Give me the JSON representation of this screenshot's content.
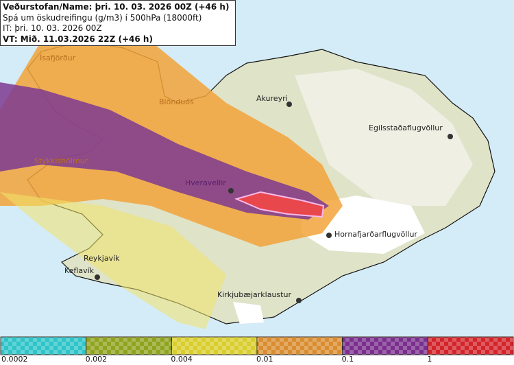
{
  "header": {
    "line1": "Veðurstofan/Name: þri. 10. 03. 2026 00Z (+46 h)",
    "line2": "Spá um öskudreifingu (g/m3) í 500hPa (18000ft)",
    "line3": "IT: þri. 10. 03. 2026 00Z",
    "line4": "VT: Mið. 11.03.2026 22Z (+46 h)"
  },
  "places": [
    {
      "name": "Ísafjörður"
    },
    {
      "name": "Blönduós"
    },
    {
      "name": "Akureyri"
    },
    {
      "name": "Egilsstaðaflugvöllur"
    },
    {
      "name": "Stykkishólmur"
    },
    {
      "name": "Hveravellir"
    },
    {
      "name": "Hornafjarðarflugvöllur"
    },
    {
      "name": "Reykjavík"
    },
    {
      "name": "Keflavík"
    },
    {
      "name": "Kirkjubæjarklaustur"
    }
  ],
  "legend": {
    "colors": [
      "#2ec4c8",
      "#8fa31e",
      "#d8cd2c",
      "#d98d30",
      "#7a2f8d",
      "#d3242b"
    ],
    "labels": [
      "0.0002",
      "0.002",
      "0.004",
      "0.01",
      "0.1",
      "1"
    ]
  }
}
